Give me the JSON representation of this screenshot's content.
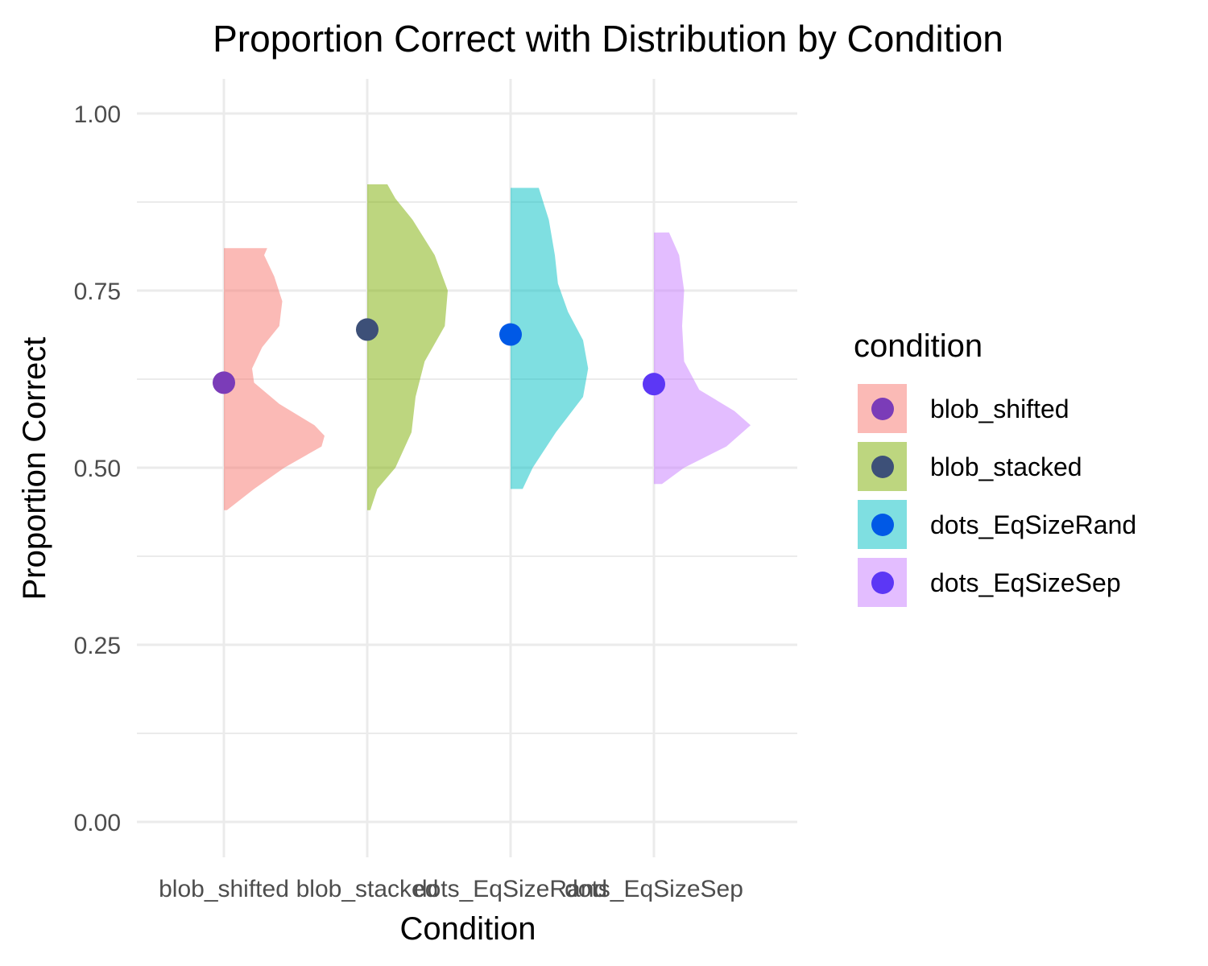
{
  "chart_data": {
    "type": "violin",
    "title": "Proportion Correct with Distribution by Condition",
    "xlabel": "Condition",
    "ylabel": "Proportion Correct",
    "ylim": [
      0,
      1
    ],
    "yticks": [
      "0.00",
      "0.25",
      "0.50",
      "0.75",
      "1.00"
    ],
    "grid": true,
    "legend": {
      "title": "condition",
      "placement": "right"
    },
    "categories": [
      "blob_shifted",
      "blob_stacked",
      "dots_EqSizeRand",
      "dots_EqSizeSep"
    ],
    "series": [
      {
        "name": "blob_shifted",
        "fill": "#F8766D",
        "point_color": "#7b3cb8",
        "mean": 0.62,
        "range": [
          0.44,
          0.81
        ],
        "density": [
          [
            0.44,
            0.03
          ],
          [
            0.47,
            0.3
          ],
          [
            0.5,
            0.6
          ],
          [
            0.53,
            0.97
          ],
          [
            0.545,
            1.0
          ],
          [
            0.56,
            0.9
          ],
          [
            0.59,
            0.55
          ],
          [
            0.62,
            0.3
          ],
          [
            0.64,
            0.28
          ],
          [
            0.67,
            0.38
          ],
          [
            0.7,
            0.55
          ],
          [
            0.735,
            0.58
          ],
          [
            0.77,
            0.5
          ],
          [
            0.8,
            0.4
          ],
          [
            0.81,
            0.43
          ]
        ]
      },
      {
        "name": "blob_stacked",
        "fill": "#7CAE00",
        "point_color": "#3d5078",
        "mean": 0.695,
        "range": [
          0.44,
          0.9
        ],
        "density": [
          [
            0.44,
            0.03
          ],
          [
            0.47,
            0.1
          ],
          [
            0.5,
            0.28
          ],
          [
            0.55,
            0.44
          ],
          [
            0.6,
            0.48
          ],
          [
            0.65,
            0.57
          ],
          [
            0.7,
            0.77
          ],
          [
            0.75,
            0.8
          ],
          [
            0.8,
            0.67
          ],
          [
            0.85,
            0.45
          ],
          [
            0.88,
            0.28
          ],
          [
            0.9,
            0.2
          ]
        ]
      },
      {
        "name": "dots_EqSizeRand",
        "fill": "#00BFC4",
        "point_color": "#0059e6",
        "mean": 0.688,
        "range": [
          0.47,
          0.895
        ],
        "density": [
          [
            0.47,
            0.12
          ],
          [
            0.5,
            0.22
          ],
          [
            0.55,
            0.45
          ],
          [
            0.6,
            0.72
          ],
          [
            0.64,
            0.77
          ],
          [
            0.68,
            0.72
          ],
          [
            0.72,
            0.57
          ],
          [
            0.76,
            0.47
          ],
          [
            0.8,
            0.44
          ],
          [
            0.85,
            0.38
          ],
          [
            0.895,
            0.28
          ]
        ]
      },
      {
        "name": "dots_EqSizeSep",
        "fill": "#C77CFF",
        "point_color": "#5c37f5",
        "mean": 0.618,
        "range": [
          0.477,
          0.832
        ],
        "density": [
          [
            0.477,
            0.08
          ],
          [
            0.5,
            0.3
          ],
          [
            0.53,
            0.72
          ],
          [
            0.56,
            0.96
          ],
          [
            0.58,
            0.8
          ],
          [
            0.61,
            0.45
          ],
          [
            0.65,
            0.3
          ],
          [
            0.7,
            0.28
          ],
          [
            0.75,
            0.3
          ],
          [
            0.8,
            0.25
          ],
          [
            0.832,
            0.15
          ]
        ]
      }
    ]
  }
}
